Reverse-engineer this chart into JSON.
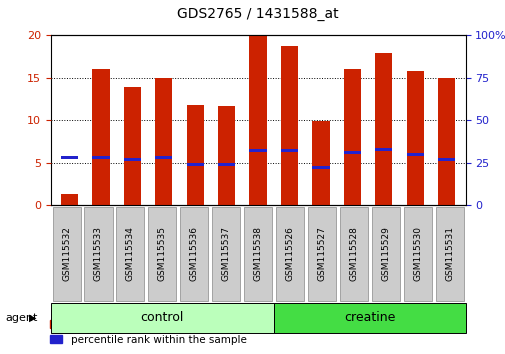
{
  "title": "GDS2765 / 1431588_at",
  "samples": [
    "GSM115532",
    "GSM115533",
    "GSM115534",
    "GSM115535",
    "GSM115536",
    "GSM115537",
    "GSM115538",
    "GSM115526",
    "GSM115527",
    "GSM115528",
    "GSM115529",
    "GSM115530",
    "GSM115531"
  ],
  "count_values": [
    1.3,
    16.0,
    13.9,
    15.0,
    11.8,
    11.7,
    20.0,
    18.8,
    9.9,
    16.0,
    17.9,
    15.8,
    15.0
  ],
  "percentile_values": [
    28,
    28,
    27,
    28,
    24,
    24,
    32,
    32,
    22,
    31,
    33,
    30,
    27
  ],
  "bar_color": "#cc2200",
  "marker_color": "#2222cc",
  "groups": [
    {
      "label": "control",
      "start": 0,
      "end": 6,
      "color": "#bbffbb"
    },
    {
      "label": "creatine",
      "start": 7,
      "end": 12,
      "color": "#44dd44"
    }
  ],
  "ylim_left": [
    0,
    20
  ],
  "ylim_right": [
    0,
    100
  ],
  "yticks_left": [
    0,
    5,
    10,
    15,
    20
  ],
  "yticks_right": [
    0,
    25,
    50,
    75,
    100
  ],
  "agent_label": "agent",
  "bg_color": "#ffffff",
  "tick_label_color_left": "#cc2200",
  "tick_label_color_right": "#2222cc",
  "bar_width": 0.55,
  "figsize": [
    5.06,
    3.54
  ],
  "dpi": 100
}
